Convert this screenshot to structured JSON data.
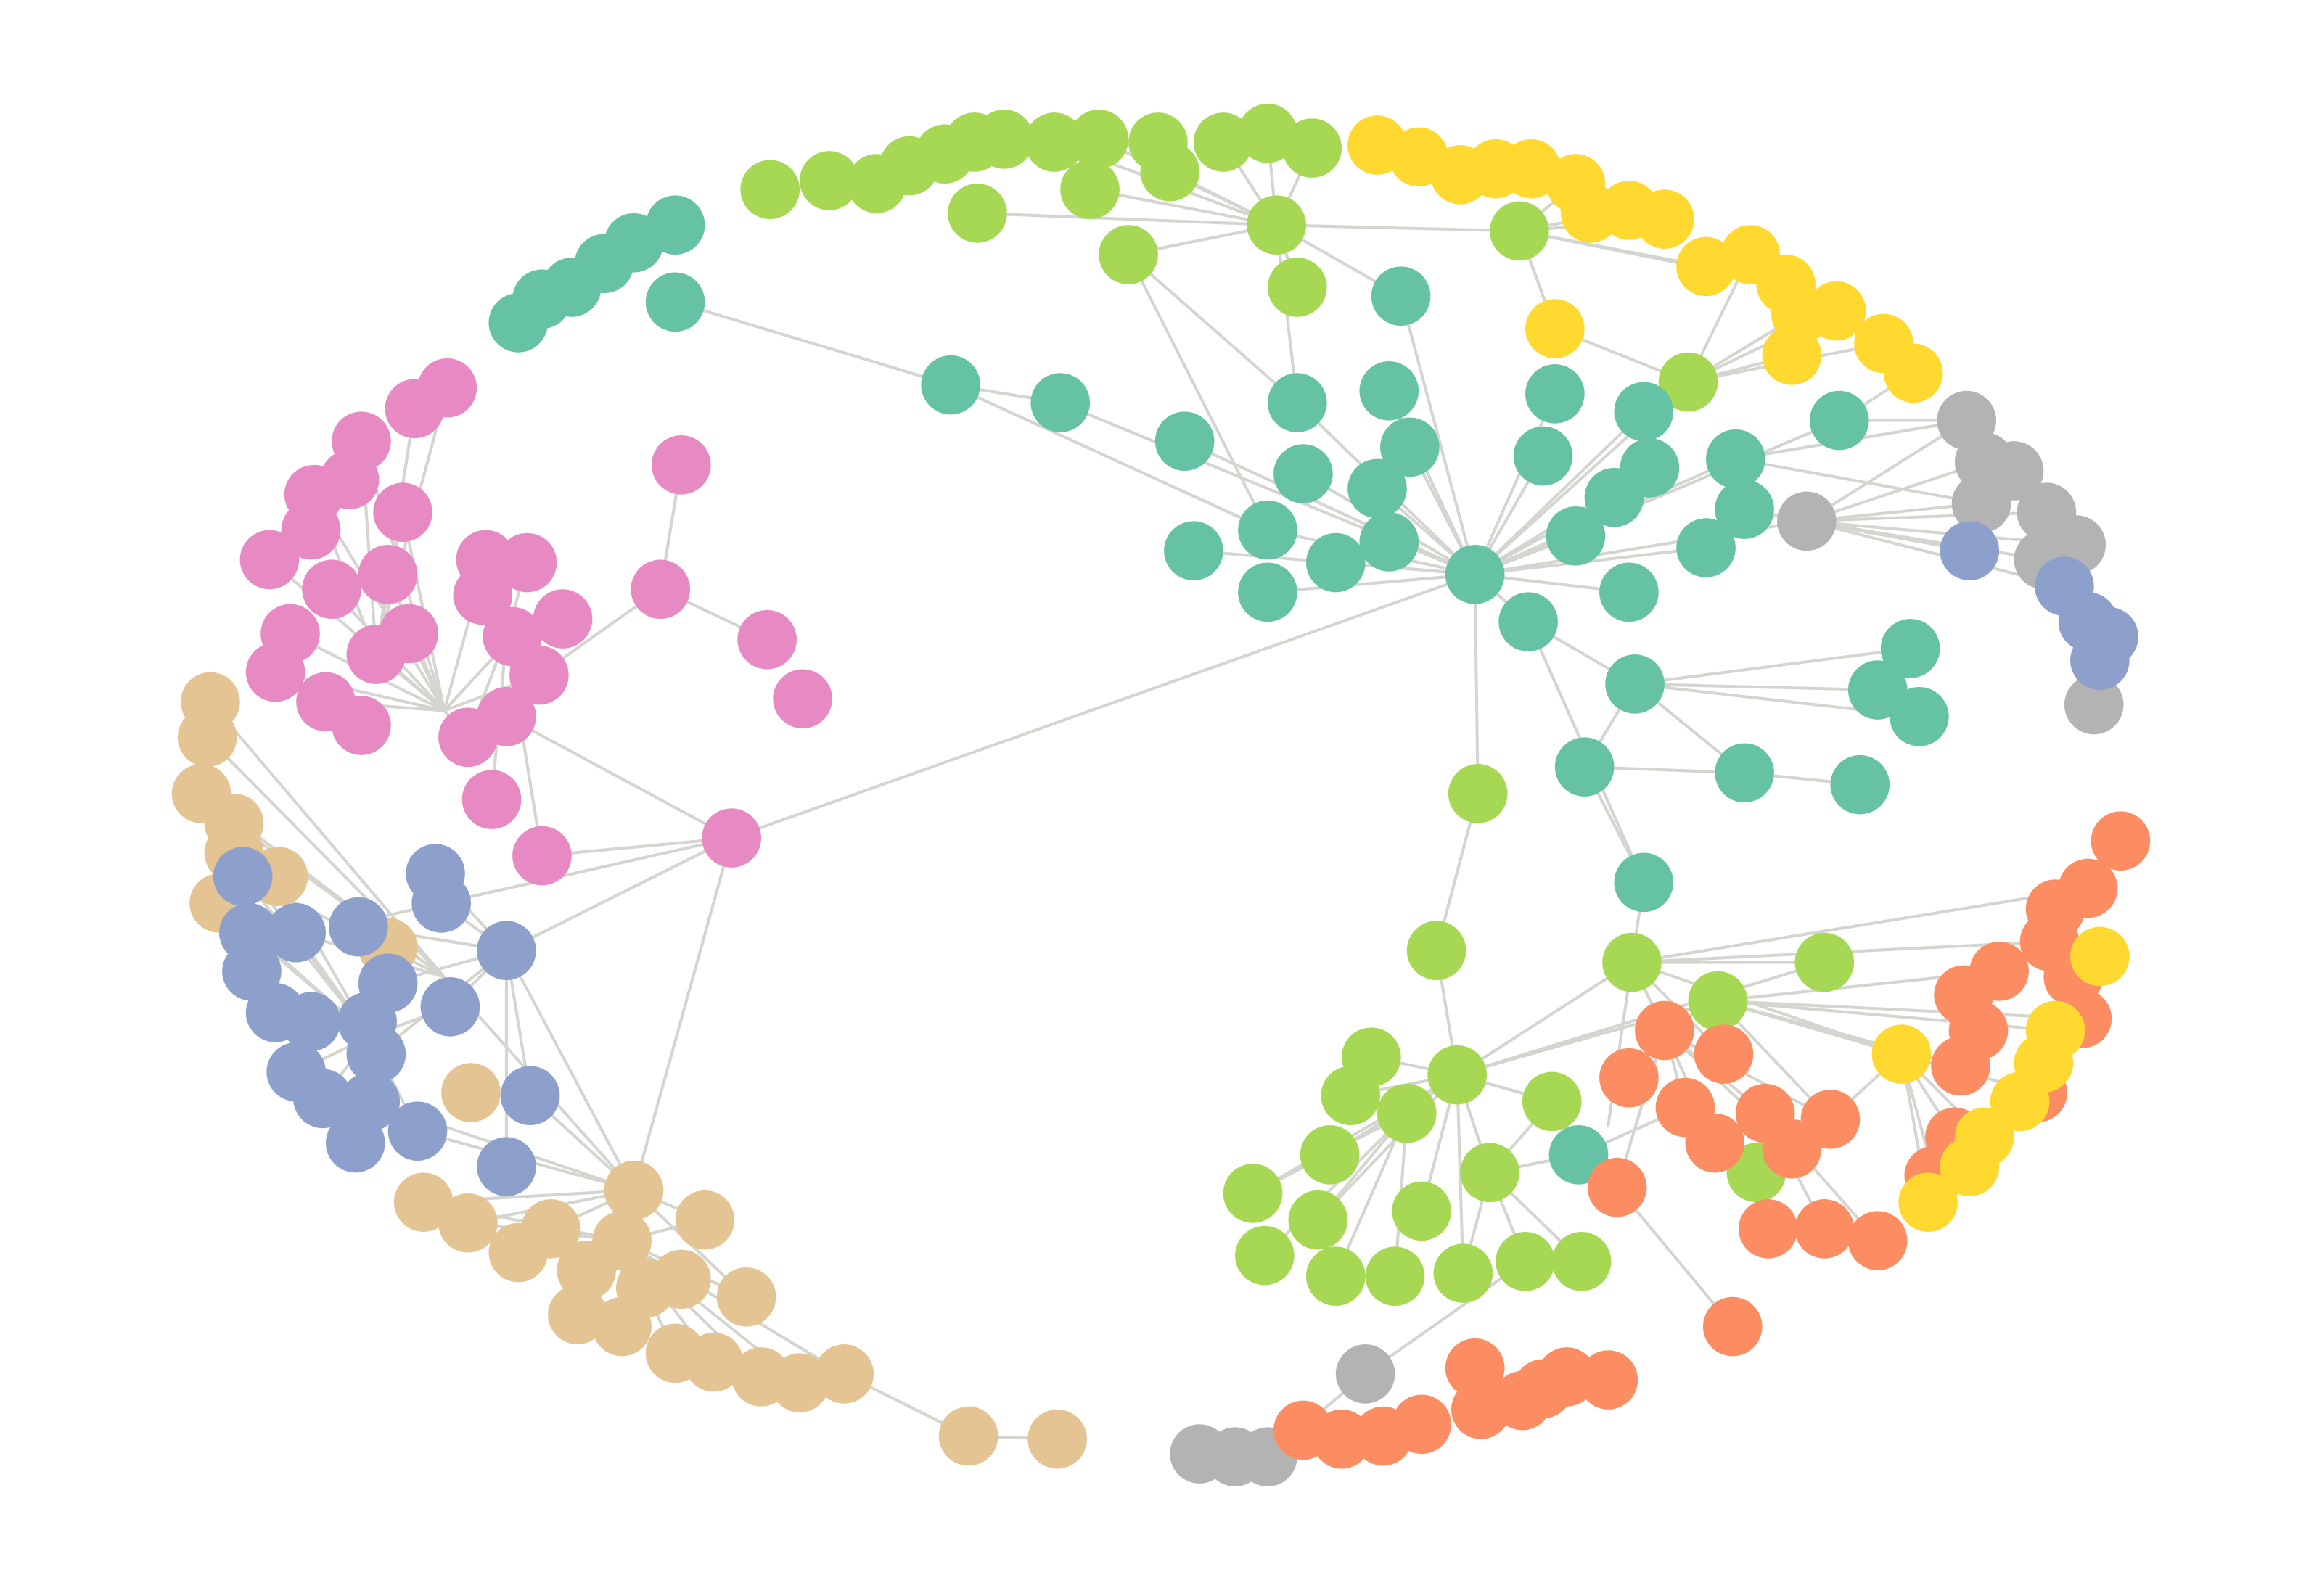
{
  "graph": {
    "layout": "force-directed",
    "edge_color": "#d5d5d0",
    "palette": {
      "teal": "#66c2a5",
      "orange": "#fc8d62",
      "blue": "#8da0cb",
      "pink": "#e78ac3",
      "green": "#a6d854",
      "yellow": "#ffd92f",
      "tan": "#e5c494",
      "gray": "#b3b3b3"
    },
    "community_count": 8,
    "node_count": 312
  }
}
